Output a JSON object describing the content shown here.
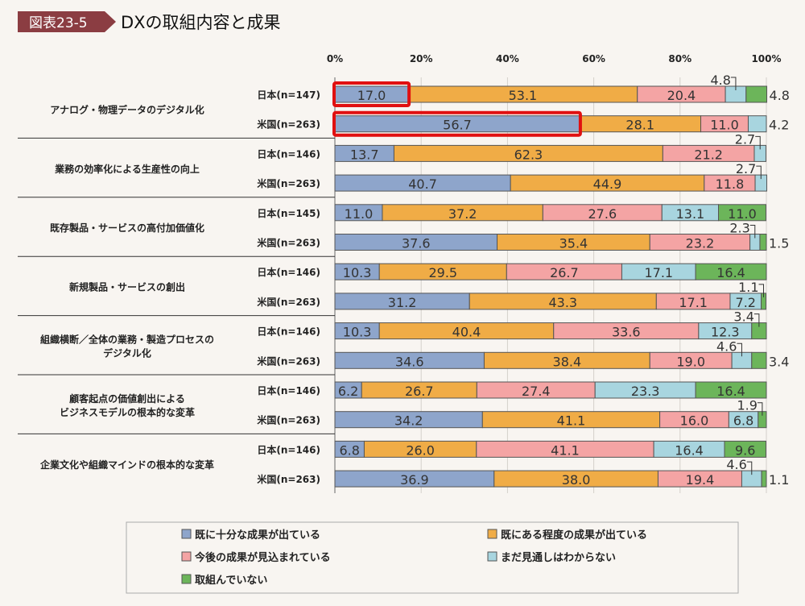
{
  "header": {
    "badge": "図表23-5",
    "title": "DXの取組内容と成果"
  },
  "colors": {
    "badge": "#8b3d42",
    "highlight": "#e01010"
  },
  "chart_data": {
    "type": "bar",
    "orientation": "horizontal-stacked-100",
    "xlim": [
      0,
      100
    ],
    "x_ticks": [
      "0%",
      "20%",
      "40%",
      "60%",
      "80%",
      "100%"
    ],
    "grid": true,
    "legend_placement": "bottom",
    "series": [
      {
        "name": "既に十分な成果が出ている",
        "color": "#8ea5cb"
      },
      {
        "name": "既にある程度の成果が出ている",
        "color": "#f0ac46"
      },
      {
        "name": "今後の成果が見込まれている",
        "color": "#f4a4a4"
      },
      {
        "name": "まだ見通しはわからない",
        "color": "#a8d5df"
      },
      {
        "name": "取組んでいない",
        "color": "#6cb55a"
      }
    ],
    "categories": [
      {
        "label": [
          "アナログ・物理データのデジタル化"
        ],
        "rows": [
          {
            "label": "日本(n=147)",
            "values": [
              17.0,
              53.1,
              20.4,
              4.8,
              4.8
            ]
          },
          {
            "label": "米国(n=263)",
            "values": [
              56.7,
              28.1,
              11.0,
              4.2,
              0
            ]
          }
        ]
      },
      {
        "label": [
          "業務の効率化による生産性の向上"
        ],
        "rows": [
          {
            "label": "日本(n=146)",
            "values": [
              13.7,
              62.3,
              21.2,
              2.7,
              0
            ]
          },
          {
            "label": "米国(n=263)",
            "values": [
              40.7,
              44.9,
              11.8,
              2.7,
              0
            ]
          }
        ]
      },
      {
        "label": [
          "既存製品・サービスの高付加価値化"
        ],
        "rows": [
          {
            "label": "日本(n=145)",
            "values": [
              11.0,
              37.2,
              27.6,
              13.1,
              11.0
            ]
          },
          {
            "label": "米国(n=263)",
            "values": [
              37.6,
              35.4,
              23.2,
              2.3,
              1.5
            ]
          }
        ]
      },
      {
        "label": [
          "新規製品・サービスの創出"
        ],
        "rows": [
          {
            "label": "日本(n=146)",
            "values": [
              10.3,
              29.5,
              26.7,
              17.1,
              16.4
            ]
          },
          {
            "label": "米国(n=263)",
            "values": [
              31.2,
              43.3,
              17.1,
              7.2,
              1.1
            ]
          }
        ]
      },
      {
        "label": [
          "組織横断／全体の業務・製造プロセスの",
          "デジタル化"
        ],
        "rows": [
          {
            "label": "日本(n=146)",
            "values": [
              10.3,
              40.4,
              33.6,
              12.3,
              3.4
            ]
          },
          {
            "label": "米国(n=263)",
            "values": [
              34.6,
              38.4,
              19.0,
              4.6,
              3.4
            ]
          }
        ]
      },
      {
        "label": [
          "顧客起点の価値創出による",
          "ビジネスモデルの根本的な変革"
        ],
        "rows": [
          {
            "label": "日本(n=146)",
            "values": [
              6.2,
              26.7,
              27.4,
              23.3,
              16.4
            ]
          },
          {
            "label": "米国(n=263)",
            "values": [
              34.2,
              41.1,
              16.0,
              6.8,
              1.9
            ]
          }
        ]
      },
      {
        "label": [
          "企業文化や組織マインドの根本的な変革"
        ],
        "rows": [
          {
            "label": "日本(n=146)",
            "values": [
              6.8,
              26.0,
              41.1,
              16.4,
              9.6
            ]
          },
          {
            "label": "米国(n=263)",
            "values": [
              36.9,
              38.0,
              19.4,
              4.6,
              1.1
            ]
          }
        ]
      }
    ],
    "highlights": [
      {
        "category": 0,
        "row": 0,
        "series": 0
      },
      {
        "category": 0,
        "row": 1,
        "series": 0
      }
    ]
  }
}
